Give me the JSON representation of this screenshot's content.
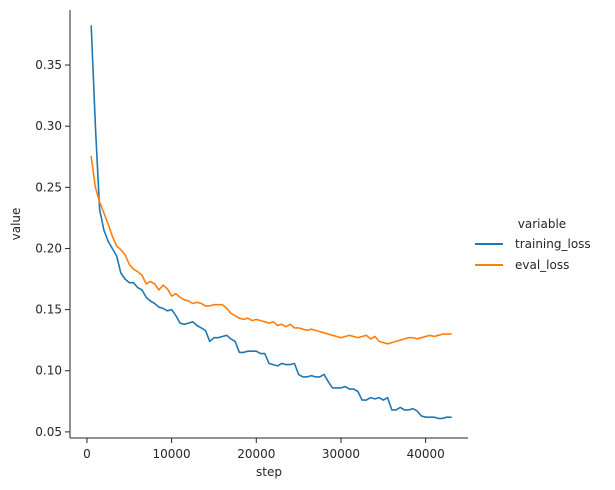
{
  "chart_data": {
    "type": "line",
    "title": "",
    "xlabel": "step",
    "ylabel": "value",
    "xlim": [
      -2000,
      45000
    ],
    "ylim": [
      0.045,
      0.395
    ],
    "xticks": [
      0,
      10000,
      20000,
      30000,
      40000
    ],
    "xtick_labels": [
      "0",
      "10000",
      "20000",
      "30000",
      "40000"
    ],
    "yticks": [
      0.05,
      0.1,
      0.15,
      0.2,
      0.25,
      0.3,
      0.35
    ],
    "ytick_labels": [
      "0.05",
      "0.10",
      "0.15",
      "0.20",
      "0.25",
      "0.30",
      "0.35"
    ],
    "grid": false,
    "legend": {
      "title": "variable",
      "placement": "right"
    },
    "series": [
      {
        "name": "training_loss",
        "color": "#1f77b4",
        "x": [
          500,
          1000,
          1500,
          2000,
          2500,
          3000,
          3500,
          4000,
          4500,
          5000,
          5500,
          6000,
          6500,
          7000,
          7500,
          8000,
          8500,
          9000,
          9500,
          10000,
          10500,
          11000,
          11500,
          12000,
          12500,
          13000,
          13500,
          14000,
          14500,
          15000,
          15500,
          16000,
          16500,
          17000,
          17500,
          18000,
          18500,
          19000,
          19500,
          20000,
          20500,
          21000,
          21500,
          22000,
          22500,
          23000,
          23500,
          24000,
          24500,
          25000,
          25500,
          26000,
          26500,
          27000,
          27500,
          28000,
          28500,
          29000,
          29500,
          30000,
          30500,
          31000,
          31500,
          32000,
          32500,
          33000,
          33500,
          34000,
          34500,
          35000,
          35500,
          36000,
          36500,
          37000,
          37500,
          38000,
          38500,
          39000,
          39500,
          40000,
          40500,
          41000,
          41500,
          42000,
          42500,
          43000
        ],
        "values": [
          0.382,
          0.3,
          0.232,
          0.215,
          0.206,
          0.2,
          0.194,
          0.18,
          0.175,
          0.172,
          0.172,
          0.168,
          0.166,
          0.16,
          0.157,
          0.155,
          0.152,
          0.151,
          0.149,
          0.15,
          0.145,
          0.139,
          0.138,
          0.139,
          0.14,
          0.137,
          0.135,
          0.133,
          0.124,
          0.127,
          0.127,
          0.128,
          0.129,
          0.126,
          0.124,
          0.115,
          0.115,
          0.116,
          0.116,
          0.116,
          0.114,
          0.114,
          0.106,
          0.105,
          0.104,
          0.106,
          0.105,
          0.105,
          0.106,
          0.097,
          0.095,
          0.095,
          0.096,
          0.095,
          0.095,
          0.097,
          0.091,
          0.086,
          0.086,
          0.086,
          0.087,
          0.085,
          0.085,
          0.083,
          0.076,
          0.076,
          0.078,
          0.077,
          0.078,
          0.076,
          0.078,
          0.068,
          0.068,
          0.07,
          0.068,
          0.068,
          0.069,
          0.067,
          0.063,
          0.062,
          0.062,
          0.062,
          0.061,
          0.061,
          0.062,
          0.062
        ]
      },
      {
        "name": "eval_loss",
        "color": "#ff7f0e",
        "x": [
          500,
          1000,
          1500,
          2000,
          2500,
          3000,
          3500,
          4000,
          4500,
          5000,
          5500,
          6000,
          6500,
          7000,
          7500,
          8000,
          8500,
          9000,
          9500,
          10000,
          10500,
          11000,
          11500,
          12000,
          12500,
          13000,
          13500,
          14000,
          14500,
          15000,
          15500,
          16000,
          16500,
          17000,
          17500,
          18000,
          18500,
          19000,
          19500,
          20000,
          20500,
          21000,
          21500,
          22000,
          22500,
          23000,
          23500,
          24000,
          24500,
          25000,
          25500,
          26000,
          26500,
          27000,
          27500,
          28000,
          28500,
          29000,
          29500,
          30000,
          30500,
          31000,
          31500,
          32000,
          32500,
          33000,
          33500,
          34000,
          34500,
          35000,
          35500,
          36000,
          36500,
          37000,
          37500,
          38000,
          38500,
          39000,
          39500,
          40000,
          40500,
          41000,
          41500,
          42000,
          42500,
          43000
        ],
        "values": [
          0.275,
          0.25,
          0.238,
          0.229,
          0.22,
          0.21,
          0.202,
          0.199,
          0.195,
          0.187,
          0.183,
          0.181,
          0.178,
          0.171,
          0.173,
          0.171,
          0.166,
          0.17,
          0.167,
          0.161,
          0.163,
          0.16,
          0.158,
          0.157,
          0.155,
          0.156,
          0.155,
          0.153,
          0.153,
          0.154,
          0.154,
          0.154,
          0.151,
          0.147,
          0.145,
          0.143,
          0.142,
          0.143,
          0.141,
          0.142,
          0.141,
          0.14,
          0.139,
          0.14,
          0.137,
          0.138,
          0.136,
          0.138,
          0.135,
          0.135,
          0.134,
          0.133,
          0.134,
          0.133,
          0.132,
          0.131,
          0.13,
          0.129,
          0.128,
          0.127,
          0.128,
          0.129,
          0.128,
          0.127,
          0.128,
          0.129,
          0.126,
          0.128,
          0.124,
          0.123,
          0.122,
          0.123,
          0.124,
          0.125,
          0.126,
          0.127,
          0.127,
          0.126,
          0.127,
          0.128,
          0.129,
          0.128,
          0.129,
          0.13,
          0.13,
          0.13
        ]
      }
    ]
  }
}
